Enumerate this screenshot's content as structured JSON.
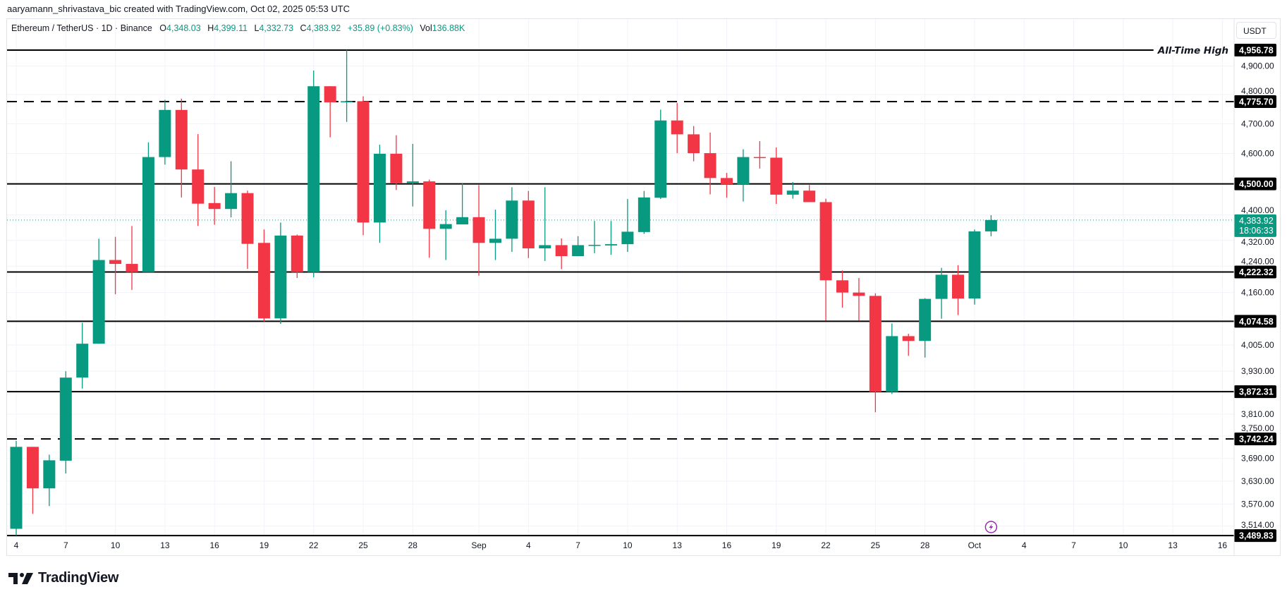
{
  "attribution": "aaryamann_shrivastava_bic created with TradingView.com, Oct 02, 2025 05:53 UTC",
  "legend": {
    "symbol": "Ethereum / TetherUS · 1D · Binance",
    "open_label": "O",
    "open": "4,348.03",
    "high_label": "H",
    "high": "4,399.11",
    "low_label": "L",
    "low": "4,332.73",
    "close_label": "C",
    "close": "4,383.92",
    "change": "+35.89 (+0.83%)",
    "vol_label": "Vol",
    "vol": "136.88K"
  },
  "currency": "USDT",
  "logo_text": "TradingView",
  "colors": {
    "up": "#089981",
    "down": "#f23645",
    "level": "#000000",
    "grid": "#f0f3fa",
    "event": "#9c27b0"
  },
  "chart_data": {
    "type": "candlestick",
    "title": "",
    "y_scale": "log",
    "ylim": [
      3489.83,
      4956.78
    ],
    "grid": true,
    "x_ticks": [
      {
        "date": "2025-08-04",
        "label": "4"
      },
      {
        "date": "2025-08-07",
        "label": "7"
      },
      {
        "date": "2025-08-10",
        "label": "10"
      },
      {
        "date": "2025-08-13",
        "label": "13"
      },
      {
        "date": "2025-08-16",
        "label": "16"
      },
      {
        "date": "2025-08-19",
        "label": "19"
      },
      {
        "date": "2025-08-22",
        "label": "22"
      },
      {
        "date": "2025-08-25",
        "label": "25"
      },
      {
        "date": "2025-08-28",
        "label": "28"
      },
      {
        "date": "2025-09-01",
        "label": "Sep"
      },
      {
        "date": "2025-09-04",
        "label": "4"
      },
      {
        "date": "2025-09-07",
        "label": "7"
      },
      {
        "date": "2025-09-10",
        "label": "10"
      },
      {
        "date": "2025-09-13",
        "label": "13"
      },
      {
        "date": "2025-09-16",
        "label": "16"
      },
      {
        "date": "2025-09-19",
        "label": "19"
      },
      {
        "date": "2025-09-22",
        "label": "22"
      },
      {
        "date": "2025-09-25",
        "label": "25"
      },
      {
        "date": "2025-09-28",
        "label": "28"
      },
      {
        "date": "2025-10-01",
        "label": "Oct"
      },
      {
        "date": "2025-10-04",
        "label": "4"
      },
      {
        "date": "2025-10-07",
        "label": "7"
      },
      {
        "date": "2025-10-10",
        "label": "10"
      },
      {
        "date": "2025-10-13",
        "label": "13"
      },
      {
        "date": "2025-10-16",
        "label": "16"
      }
    ],
    "y_ticks": [
      {
        "value": 4900,
        "label": "4,900.00"
      },
      {
        "value": 4800,
        "label": "4,800.00"
      },
      {
        "value": 4700,
        "label": "4,700.00"
      },
      {
        "value": 4600,
        "label": "4,600.00"
      },
      {
        "value": 4400,
        "label": "4,400.00"
      },
      {
        "value": 4320,
        "label": "4,320.00"
      },
      {
        "value": 4240,
        "label": "4,240.00"
      },
      {
        "value": 4160,
        "label": "4,160.00"
      },
      {
        "value": 4005,
        "label": "4,005.00"
      },
      {
        "value": 3930,
        "label": "3,930.00"
      },
      {
        "value": 3810,
        "label": "3,810.00"
      },
      {
        "value": 3750,
        "label": "3,750.00"
      },
      {
        "value": 3690,
        "label": "3,690.00"
      },
      {
        "value": 3630,
        "label": "3,630.00"
      },
      {
        "value": 3570,
        "label": "3,570.00"
      },
      {
        "value": 3514,
        "label": "3,514.00"
      }
    ],
    "levels": [
      {
        "value": 4956.78,
        "label": "4,956.78",
        "style": "solid",
        "note": "All-Time High"
      },
      {
        "value": 4775.7,
        "label": "4,775.70",
        "style": "dashed"
      },
      {
        "value": 4500.0,
        "label": "4,500.00",
        "style": "solid"
      },
      {
        "value": 4222.32,
        "label": "4,222.32",
        "style": "solid"
      },
      {
        "value": 4074.58,
        "label": "4,074.58",
        "style": "solid"
      },
      {
        "value": 3872.31,
        "label": "3,872.31",
        "style": "solid"
      },
      {
        "value": 3742.24,
        "label": "3,742.24",
        "style": "dashed"
      },
      {
        "value": 3489.83,
        "label": "3,489.83",
        "style": "solid"
      }
    ],
    "last_price": {
      "value": 4383.92,
      "label": "4,383.92",
      "countdown": "18:06:33"
    },
    "event_marker": {
      "date": "2025-10-02",
      "icon": "lightning-icon"
    },
    "columns": [
      "date",
      "open",
      "high",
      "low",
      "close"
    ],
    "candles": [
      [
        "2025-08-04",
        3507,
        3737,
        3490,
        3721
      ],
      [
        "2025-08-05",
        3721,
        3721,
        3545,
        3611
      ],
      [
        "2025-08-06",
        3611,
        3700,
        3565,
        3685
      ],
      [
        "2025-08-07",
        3684,
        3930,
        3650,
        3912
      ],
      [
        "2025-08-08",
        3912,
        4070,
        3881,
        4009
      ],
      [
        "2025-08-09",
        4009,
        4325,
        4009,
        4259
      ],
      [
        "2025-08-10",
        4259,
        4331,
        4155,
        4247
      ],
      [
        "2025-08-11",
        4247,
        4365,
        4168,
        4222
      ],
      [
        "2025-08-12",
        4222,
        4637,
        4222,
        4588
      ],
      [
        "2025-08-13",
        4588,
        4782,
        4563,
        4747
      ],
      [
        "2025-08-14",
        4747,
        4786,
        4456,
        4547
      ],
      [
        "2025-08-15",
        4547,
        4665,
        4365,
        4436
      ],
      [
        "2025-08-16",
        4438,
        4490,
        4369,
        4419
      ],
      [
        "2025-08-17",
        4419,
        4574,
        4392,
        4470
      ],
      [
        "2025-08-18",
        4470,
        4478,
        4232,
        4309
      ],
      [
        "2025-08-19",
        4312,
        4354,
        4074,
        4083
      ],
      [
        "2025-08-20",
        4083,
        4376,
        4067,
        4335
      ],
      [
        "2025-08-21",
        4335,
        4338,
        4204,
        4222
      ],
      [
        "2025-08-22",
        4222,
        4884,
        4206,
        4829
      ],
      [
        "2025-08-23",
        4829,
        4829,
        4654,
        4773
      ],
      [
        "2025-08-24",
        4773,
        4956.78,
        4706,
        4777
      ],
      [
        "2025-08-25",
        4777,
        4794,
        4336,
        4376
      ],
      [
        "2025-08-26",
        4376,
        4629,
        4312,
        4599
      ],
      [
        "2025-08-27",
        4599,
        4661,
        4480,
        4503
      ],
      [
        "2025-08-28",
        4503,
        4632,
        4427,
        4508
      ],
      [
        "2025-08-29",
        4508,
        4514,
        4266,
        4356
      ],
      [
        "2025-08-30",
        4356,
        4415,
        4259,
        4371
      ],
      [
        "2025-08-31",
        4370,
        4503,
        4370,
        4393
      ],
      [
        "2025-09-01",
        4393,
        4496,
        4211,
        4312
      ],
      [
        "2025-09-02",
        4312,
        4417,
        4259,
        4325
      ],
      [
        "2025-09-03",
        4325,
        4489,
        4284,
        4446
      ],
      [
        "2025-09-04",
        4446,
        4477,
        4265,
        4295
      ],
      [
        "2025-09-05",
        4295,
        4489,
        4256,
        4305
      ],
      [
        "2025-09-06",
        4305,
        4326,
        4231,
        4271
      ],
      [
        "2025-09-07",
        4271,
        4333,
        4271,
        4305
      ],
      [
        "2025-09-08",
        4304,
        4381,
        4280,
        4306
      ],
      [
        "2025-09-09",
        4304,
        4381,
        4275,
        4308
      ],
      [
        "2025-09-10",
        4308,
        4451,
        4284,
        4347
      ],
      [
        "2025-09-11",
        4346,
        4477,
        4340,
        4456
      ],
      [
        "2025-09-12",
        4455,
        4748,
        4451,
        4711
      ],
      [
        "2025-09-13",
        4711,
        4771,
        4601,
        4664
      ],
      [
        "2025-09-14",
        4664,
        4692,
        4574,
        4601
      ],
      [
        "2025-09-15",
        4601,
        4670,
        4466,
        4519
      ],
      [
        "2025-09-16",
        4519,
        4536,
        4455,
        4499
      ],
      [
        "2025-09-17",
        4499,
        4614,
        4443,
        4588
      ],
      [
        "2025-09-18",
        4588,
        4641,
        4550,
        4586
      ],
      [
        "2025-09-19",
        4586,
        4620,
        4435,
        4465
      ],
      [
        "2025-09-20",
        4465,
        4506,
        4452,
        4478
      ],
      [
        "2025-09-21",
        4478,
        4496,
        4441,
        4441
      ],
      [
        "2025-09-22",
        4441,
        4452,
        4076,
        4197
      ],
      [
        "2025-09-23",
        4197,
        4227,
        4115,
        4160
      ],
      [
        "2025-09-24",
        4160,
        4204,
        4076,
        4150
      ],
      [
        "2025-09-25",
        4150,
        4158,
        3815,
        3872
      ],
      [
        "2025-09-26",
        3872,
        4068,
        3866,
        4031
      ],
      [
        "2025-09-27",
        4031,
        4038,
        3974,
        4017
      ],
      [
        "2025-09-28",
        4017,
        4143,
        3969,
        4141
      ],
      [
        "2025-09-29",
        4141,
        4235,
        4082,
        4214
      ],
      [
        "2025-09-30",
        4214,
        4243,
        4093,
        4142
      ],
      [
        "2025-10-01",
        4142,
        4354,
        4124,
        4348.03
      ],
      [
        "2025-10-02",
        4348.03,
        4399.11,
        4332.73,
        4383.92
      ]
    ]
  }
}
